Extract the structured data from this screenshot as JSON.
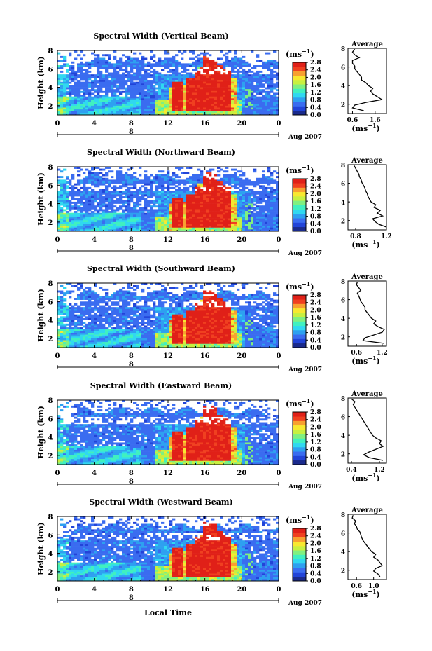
{
  "figure": {
    "shared_xlabel": "Local Time",
    "colorbar_unit": "(ms",
    "colorbar_unit_sup": "−1",
    "colorbar_unit_close": ")",
    "profile_title": "Average",
    "profile_xlabel": "(ms",
    "profile_xlabel_sup": "−1",
    "profile_xlabel_close": ")",
    "date_label": "Aug 2007",
    "date_tick_label": "8"
  },
  "colors": {
    "colormap": [
      "#1a2a8c",
      "#2244d8",
      "#3a6cf0",
      "#2ea0f0",
      "#30d8f0",
      "#40f0c0",
      "#80f080",
      "#c8f040",
      "#f8e830",
      "#f8a030",
      "#f04020",
      "#e02018"
    ],
    "red": "#ec3222",
    "profile_line": "#000000"
  },
  "chart_data": [
    {
      "type": "heatmap",
      "title": "Spectral Width (Vertical Beam)",
      "ylabel": "Height (km)",
      "xlim": [
        0,
        24
      ],
      "ylim": [
        1,
        8
      ],
      "x_ticks": [
        "0",
        "4",
        "8",
        "12",
        "16",
        "20",
        "0"
      ],
      "y_ticks": [
        "2",
        "4",
        "6",
        "8"
      ],
      "colorbar_ticks": [
        "0.0",
        "0.4",
        "0.8",
        "1.2",
        "1.6",
        "2.0",
        "2.4",
        "2.8"
      ],
      "colorbar_range": [
        0.0,
        2.8
      ],
      "profile": {
        "xlim": [
          0.4,
          2.1
        ],
        "x_ticks": [
          "0.6",
          "1.6"
        ],
        "y_ticks": [
          "2",
          "4",
          "6",
          "8"
        ],
        "height": [
          1.3,
          1.6,
          1.9,
          2.2,
          2.5,
          2.8,
          3.1,
          3.4,
          3.7,
          4.0,
          4.3,
          4.6,
          4.9,
          5.2,
          5.5,
          5.8,
          6.1,
          6.4,
          6.7,
          7.0,
          7.3,
          7.6,
          7.9
        ],
        "width": [
          1.1,
          0.6,
          0.7,
          1.2,
          1.9,
          1.7,
          1.5,
          1.4,
          1.5,
          1.3,
          1.2,
          1.0,
          1.0,
          0.9,
          0.8,
          0.7,
          0.7,
          0.6,
          0.6,
          0.9,
          0.7,
          0.6,
          0.7
        ]
      }
    },
    {
      "type": "heatmap",
      "title": "Spectral Width (Northward Beam)",
      "ylabel": "Height (km)",
      "xlim": [
        0,
        24
      ],
      "ylim": [
        1,
        8
      ],
      "x_ticks": [
        "0",
        "4",
        "8",
        "12",
        "16",
        "20",
        "0"
      ],
      "y_ticks": [
        "2",
        "4",
        "6",
        "8"
      ],
      "colorbar_ticks": [
        "0.0",
        "0.4",
        "0.8",
        "1.2",
        "1.6",
        "2.0",
        "2.4",
        "2.8"
      ],
      "colorbar_range": [
        0.0,
        2.8
      ],
      "profile": {
        "xlim": [
          0.7,
          1.2
        ],
        "x_ticks": [
          "0.8",
          "1.2"
        ],
        "y_ticks": [
          "2",
          "4",
          "6",
          "8"
        ],
        "height": [
          1.3,
          1.6,
          1.9,
          2.2,
          2.5,
          2.8,
          3.1,
          3.4,
          3.7,
          4.0,
          4.3,
          4.6,
          4.9,
          5.2,
          5.5,
          5.8,
          6.1,
          6.4,
          6.7,
          7.0,
          7.3,
          7.6,
          7.9
        ],
        "width": [
          1.2,
          1.1,
          1.05,
          1.02,
          1.15,
          1.08,
          1.12,
          1.04,
          1.06,
          1.0,
          0.98,
          0.96,
          0.95,
          0.93,
          0.92,
          0.9,
          0.88,
          0.87,
          0.85,
          0.84,
          0.82,
          0.8,
          0.78
        ]
      }
    },
    {
      "type": "heatmap",
      "title": "Spectral Width (Southward Beam)",
      "ylabel": "Height (km)",
      "xlim": [
        0,
        24
      ],
      "ylim": [
        1,
        8
      ],
      "x_ticks": [
        "0",
        "4",
        "8",
        "12",
        "16",
        "20",
        "0"
      ],
      "y_ticks": [
        "2",
        "4",
        "6",
        "8"
      ],
      "colorbar_ticks": [
        "0.0",
        "0.4",
        "0.8",
        "1.2",
        "1.6",
        "2.0",
        "2.4",
        "2.8"
      ],
      "colorbar_range": [
        0.0,
        2.8
      ],
      "profile": {
        "xlim": [
          0.4,
          1.3
        ],
        "x_ticks": [
          "0.6",
          "1.2"
        ],
        "y_ticks": [
          "2",
          "4",
          "6",
          "8"
        ],
        "height": [
          1.3,
          1.6,
          1.9,
          2.2,
          2.5,
          2.8,
          3.1,
          3.4,
          3.7,
          4.0,
          4.3,
          4.6,
          4.9,
          5.2,
          5.5,
          5.8,
          6.1,
          6.4,
          6.7,
          7.0,
          7.3,
          7.6,
          7.9
        ],
        "width": [
          1.25,
          0.75,
          0.8,
          1.0,
          1.2,
          1.25,
          1.1,
          1.0,
          1.05,
          0.95,
          0.9,
          0.85,
          0.8,
          0.8,
          0.75,
          0.7,
          0.68,
          0.65,
          0.62,
          0.7,
          0.65,
          0.6,
          0.62
        ]
      }
    },
    {
      "type": "heatmap",
      "title": "Spectral Width (Eastward Beam)",
      "ylabel": "Height (km)",
      "xlim": [
        0,
        24
      ],
      "ylim": [
        1,
        8
      ],
      "x_ticks": [
        "0",
        "4",
        "8",
        "12",
        "16",
        "20",
        "0"
      ],
      "y_ticks": [
        "2",
        "4",
        "6",
        "8"
      ],
      "colorbar_ticks": [
        "0.0",
        "0.4",
        "0.8",
        "1.2",
        "1.6",
        "2.0",
        "2.4",
        "2.8"
      ],
      "colorbar_range": [
        0.0,
        2.8
      ],
      "profile": {
        "xlim": [
          0.3,
          1.4
        ],
        "x_ticks": [
          "0.4",
          "1.2"
        ],
        "y_ticks": [
          "2",
          "4",
          "6",
          "8"
        ],
        "height": [
          1.3,
          1.6,
          1.9,
          2.2,
          2.5,
          2.8,
          3.1,
          3.4,
          3.7,
          4.0,
          4.3,
          4.6,
          4.9,
          5.2,
          5.5,
          5.8,
          6.1,
          6.4,
          6.7,
          7.0,
          7.3,
          7.6,
          7.9
        ],
        "width": [
          1.3,
          0.9,
          0.75,
          0.9,
          1.1,
          1.3,
          1.2,
          1.25,
          1.1,
          1.0,
          0.95,
          0.9,
          0.85,
          0.8,
          0.75,
          0.7,
          0.65,
          0.6,
          0.55,
          0.5,
          0.45,
          0.5,
          0.4
        ]
      }
    },
    {
      "type": "heatmap",
      "title": "Spectral Width (Westward Beam)",
      "ylabel": "Height (km)",
      "xlim": [
        0,
        24
      ],
      "ylim": [
        1,
        8
      ],
      "x_ticks": [
        "0",
        "4",
        "8",
        "12",
        "16",
        "20",
        "0"
      ],
      "y_ticks": [
        "2",
        "4",
        "6",
        "8"
      ],
      "colorbar_ticks": [
        "0.0",
        "0.4",
        "0.8",
        "1.2",
        "1.6",
        "2.0",
        "2.4",
        "2.8"
      ],
      "colorbar_range": [
        0.0,
        2.8
      ],
      "profile": {
        "xlim": [
          0.4,
          1.3
        ],
        "x_ticks": [
          "0.6",
          "1.0"
        ],
        "y_ticks": [
          "2",
          "4",
          "6",
          "8"
        ],
        "height": [
          1.3,
          1.6,
          1.9,
          2.2,
          2.5,
          2.8,
          3.1,
          3.4,
          3.7,
          4.0,
          4.3,
          4.6,
          4.9,
          5.2,
          5.5,
          5.8,
          6.1,
          6.4,
          6.7,
          7.0,
          7.3,
          7.6,
          7.9
        ],
        "width": [
          1.15,
          1.1,
          1.0,
          1.05,
          1.2,
          1.15,
          1.1,
          1.0,
          1.05,
          0.95,
          0.9,
          0.85,
          0.8,
          0.75,
          0.72,
          0.7,
          0.68,
          0.62,
          0.6,
          0.55,
          0.58,
          0.5,
          0.52
        ]
      }
    }
  ]
}
